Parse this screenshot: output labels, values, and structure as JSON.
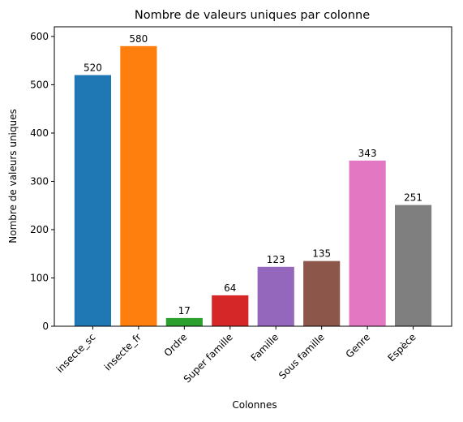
{
  "chart_data": {
    "type": "bar",
    "title": "Nombre de valeurs uniques par colonne",
    "xlabel": "Colonnes",
    "ylabel": "Nombre de valeurs uniques",
    "categories": [
      "insecte_sc",
      "insecte_fr",
      "Ordre",
      "Super famille",
      "Famille",
      "Sous famille",
      "Genre",
      "Espèce"
    ],
    "values": [
      520,
      580,
      17,
      64,
      123,
      135,
      343,
      251
    ],
    "data_labels": [
      "520",
      "580",
      "17",
      "64",
      "123",
      "135",
      "343",
      "251"
    ],
    "colors": [
      "#1f77b4",
      "#ff7f0e",
      "#2ca02c",
      "#d62728",
      "#9467bd",
      "#8c564b",
      "#e377c2",
      "#7f7f7f"
    ],
    "ylim": [
      0,
      620
    ],
    "yticks": [
      0,
      100,
      200,
      300,
      400,
      500,
      600
    ],
    "ytick_labels": [
      "0",
      "100",
      "200",
      "300",
      "400",
      "500",
      "600"
    ],
    "grid": false,
    "legend": "none",
    "xtick_rotation_deg": 45
  }
}
